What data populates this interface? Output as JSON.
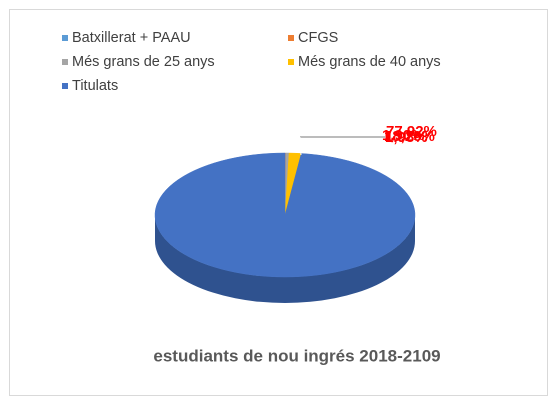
{
  "chart_data": {
    "type": "pie3d",
    "title": "estudiants de nou ingrés 2018-2109",
    "series": [
      {
        "name": "Batxillerat + PAAU",
        "color": "#5b9bd5",
        "values": [
          0.05
        ]
      },
      {
        "name": "CFGS",
        "color": "#ed7d31",
        "values": [
          0.05
        ]
      },
      {
        "name": "Més grans de 25 anys",
        "color": "#a5a5a5",
        "values": [
          0.4
        ]
      },
      {
        "name": "Més grans de 40 anys",
        "color": "#ffc000",
        "values": [
          1.5
        ]
      },
      {
        "name": "Titulats",
        "color": "#4472c4",
        "values": [
          98
        ]
      }
    ],
    "annotations": [
      "77,92%",
      "18,20%",
      "1,90%",
      "1,98%"
    ]
  }
}
